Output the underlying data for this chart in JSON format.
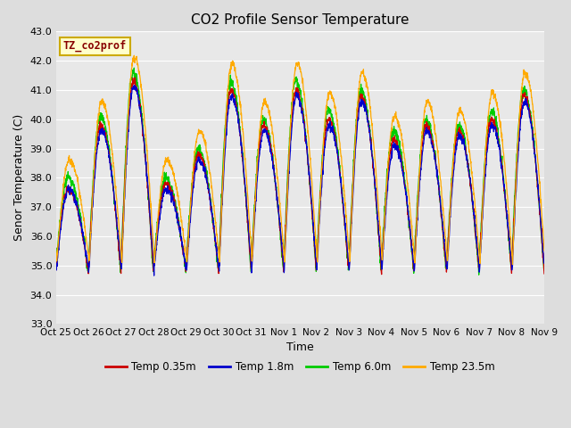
{
  "title": "CO2 Profile Sensor Temperature",
  "ylabel": "Senor Temperature (C)",
  "xlabel": "Time",
  "xlabels": [
    "Oct 25",
    "Oct 26",
    "Oct 27",
    "Oct 28",
    "Oct 29",
    "Oct 30",
    "Oct 31",
    "Nov 1",
    "Nov 2",
    "Nov 3",
    "Nov 4",
    "Nov 5",
    "Nov 6",
    "Nov 7",
    "Nov 8",
    "Nov 9"
  ],
  "ylim": [
    33.0,
    43.0
  ],
  "yticks": [
    33.0,
    34.0,
    35.0,
    36.0,
    37.0,
    38.0,
    39.0,
    40.0,
    41.0,
    42.0,
    43.0
  ],
  "colors": {
    "Temp 0.35m": "#cc0000",
    "Temp 1.8m": "#0000cc",
    "Temp 6.0m": "#00cc00",
    "Temp 23.5m": "#ffaa00"
  },
  "legend_label": "TZ_co2prof",
  "legend_label_color": "#880000",
  "legend_label_bg": "#ffffcc",
  "legend_label_border": "#ccaa00",
  "plot_bg_color": "#e8e8e8",
  "grid_color": "#ffffff",
  "linewidth": 0.9,
  "title_fontsize": 11,
  "tick_fontsize": 8,
  "ylabel_fontsize": 9,
  "xlabel_fontsize": 9
}
